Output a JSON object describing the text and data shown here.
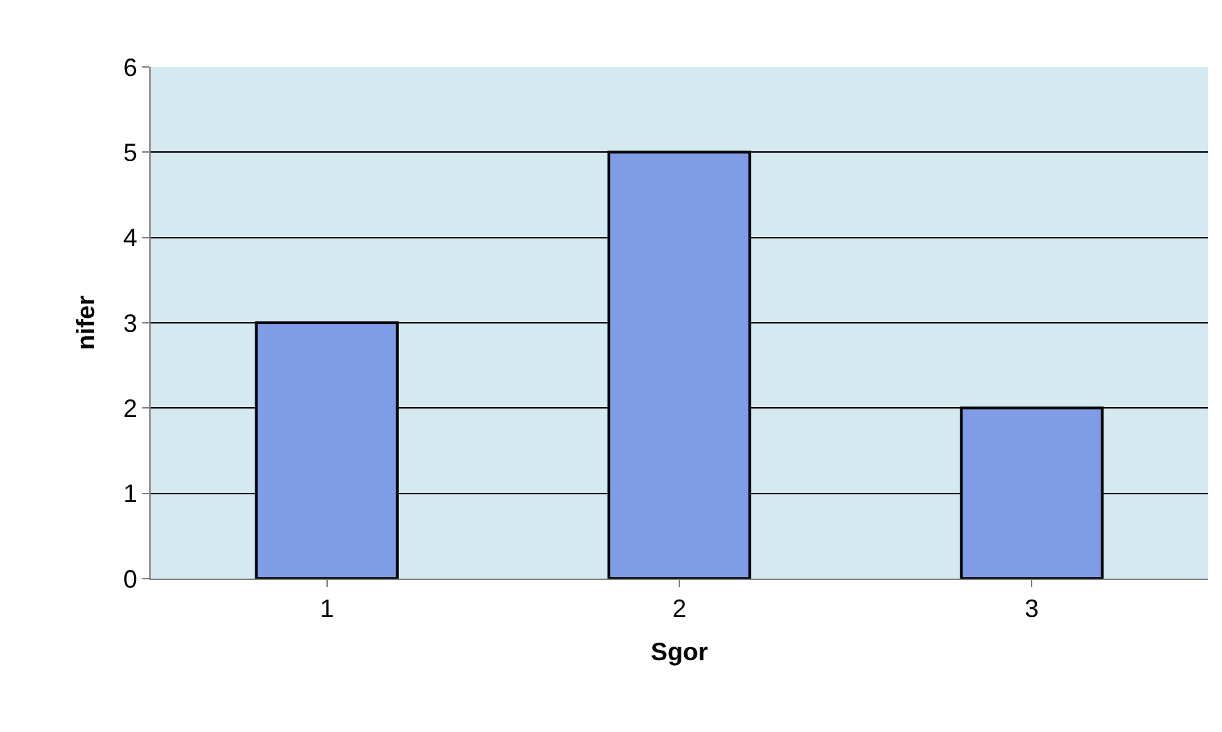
{
  "chart_data": {
    "type": "bar",
    "categories": [
      "1",
      "2",
      "3"
    ],
    "values": [
      3,
      5,
      2
    ],
    "color": "#7f9ce6",
    "xlabel": "Sgor",
    "ylabel": "nifer",
    "ylim": [
      0,
      6
    ],
    "yticks": [
      0,
      1,
      2,
      3,
      4,
      5,
      6
    ],
    "grid": "y"
  }
}
